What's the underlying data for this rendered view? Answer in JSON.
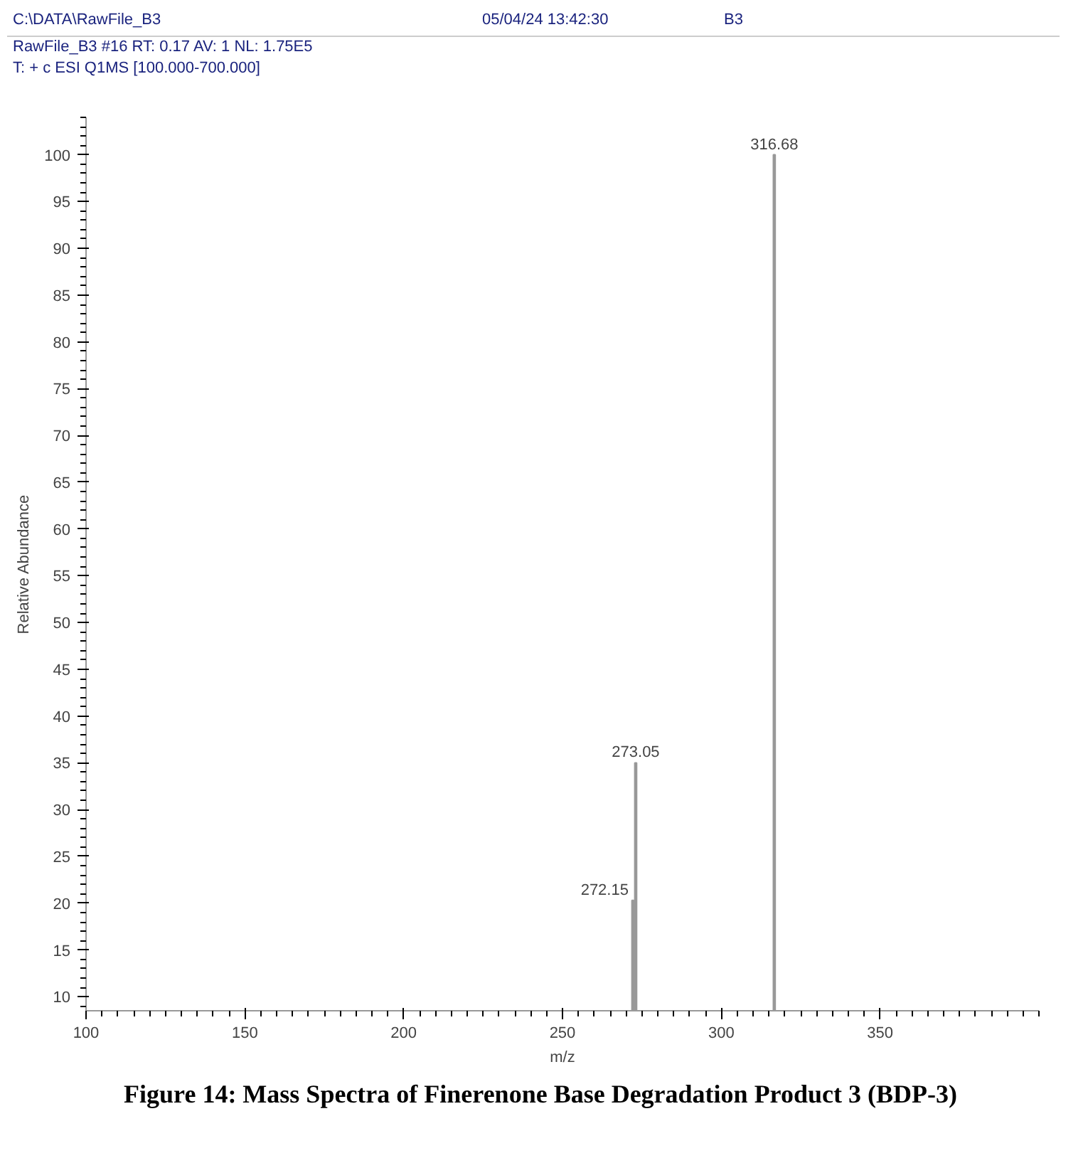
{
  "chart_data": {
    "type": "bar",
    "title": "Figure 14: Mass Spectra of Finerenone Base Degradation Product 3 (BDP-3)",
    "xlabel": "m/z",
    "ylabel": "Relative Abundance",
    "x": [
      272.15,
      273.05,
      316.68
    ],
    "values": [
      20.3,
      35,
      100
    ],
    "color": "#999999",
    "xlim": [
      100,
      400
    ],
    "ylim": [
      8.5,
      104
    ],
    "xticks": [
      100,
      150,
      200,
      250,
      300,
      350
    ],
    "yticks": [
      10,
      15,
      20,
      25,
      30,
      35,
      40,
      45,
      50,
      55,
      60,
      65,
      70,
      75,
      80,
      85,
      90,
      95,
      100
    ],
    "grid": false,
    "annotations": [
      "C:\\DATA\\RawFile_B3",
      "05/04/24 13:42:30",
      "B3",
      "RawFile_B3 #16  RT: 0.17  AV: 1  NL: 1.75E5",
      "T: + c ESI Q1MS [100.000-700.000]",
      {
        "text": "272.15",
        "x": 272.15,
        "y": 20.3
      },
      {
        "text": "273.05",
        "x": 273.05,
        "y": 35
      },
      {
        "text": "316.68",
        "x": 316.68,
        "y": 100
      }
    ]
  }
}
